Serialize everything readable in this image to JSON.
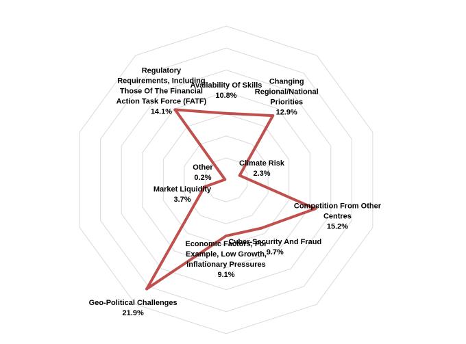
{
  "chart_data": {
    "type": "radar",
    "title": "",
    "grid": true,
    "legend": "none",
    "range": [
      0,
      25
    ],
    "ring_step": 3.57,
    "colors": {
      "series": "#c0504d",
      "grid": "#d9d9d9"
    },
    "categories": [
      {
        "label_lines": [
          "Availability Of Skills"
        ],
        "value_text": "10.8%",
        "value": 10.8
      },
      {
        "label_lines": [
          "Changing",
          "Regional/National",
          "Priorities"
        ],
        "value_text": "12.9%",
        "value": 12.9
      },
      {
        "label_lines": [
          "Climate Risk"
        ],
        "value_text": "2.3%",
        "value": 2.3
      },
      {
        "label_lines": [
          "Competition From Other",
          "Centres"
        ],
        "value_text": "15.2%",
        "value": 15.2
      },
      {
        "label_lines": [
          "Cyber-Security And Fraud"
        ],
        "value_text": "9.7%",
        "value": 9.7
      },
      {
        "label_lines": [
          "Economic Factors, For",
          "Example, Low Growth,",
          "Inflationary Pressures"
        ],
        "value_text": "9.1%",
        "value": 9.1
      },
      {
        "label_lines": [
          "Geo-Political Challenges"
        ],
        "value_text": "21.9%",
        "value": 21.9
      },
      {
        "label_lines": [
          "Market Liquidity"
        ],
        "value_text": "3.7%",
        "value": 3.7
      },
      {
        "label_lines": [
          "Other"
        ],
        "value_text": "0.2%",
        "value": 0.2
      },
      {
        "label_lines": [
          "Regulatory",
          "Requirements, Including",
          "Those Of The Financial",
          "Action Task Force (FATF)"
        ],
        "value_text": "14.1%",
        "value": 14.1
      }
    ]
  }
}
